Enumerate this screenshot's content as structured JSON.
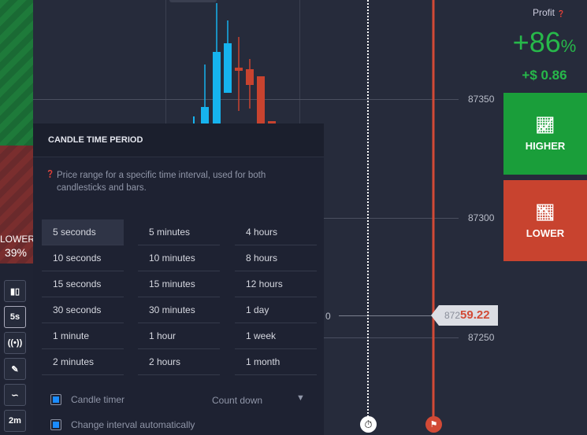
{
  "chart": {
    "price_labels": [
      "87350",
      "87300",
      "87250"
    ],
    "partial_label": "0",
    "current_price_prefix": "872",
    "current_price_suffix": "59.22",
    "left_partial_price": "872"
  },
  "sidebar": {
    "lower_label": "LOWER",
    "lower_pct": "39%",
    "tools": [
      {
        "icon": "candles-icon"
      },
      {
        "label": "5s"
      },
      {
        "icon": "live-signal-icon"
      },
      {
        "icon": "pencil-icon"
      },
      {
        "icon": "indicator-wave-icon"
      },
      {
        "label": "2m"
      }
    ]
  },
  "popup": {
    "title": "CANDLE TIME PERIOD",
    "description": "Price range for a specific time interval, used for both candlesticks and bars.",
    "columns": [
      [
        "5 seconds",
        "10 seconds",
        "15 seconds",
        "30 seconds",
        "1 minute",
        "2 minutes"
      ],
      [
        "5 minutes",
        "10 minutes",
        "15 minutes",
        "30 minutes",
        "1 hour",
        "2 hours"
      ],
      [
        "4 hours",
        "8 hours",
        "12 hours",
        "1 day",
        "1 week",
        "1 month"
      ]
    ],
    "selected": "5 seconds",
    "candle_timer_label": "Candle timer",
    "candle_timer_mode": "Count down",
    "auto_interval_label": "Change interval automatically"
  },
  "profit": {
    "label": "Profit",
    "percent": "+86",
    "percent_sign": "%",
    "amount": "+$ 0.86"
  },
  "buttons": {
    "higher": "HIGHER",
    "lower": "LOWER"
  },
  "colors": {
    "green": "#1a9e3a",
    "red": "#c8432f",
    "blue": "#16b3ee",
    "accent": "#1a8cff"
  }
}
